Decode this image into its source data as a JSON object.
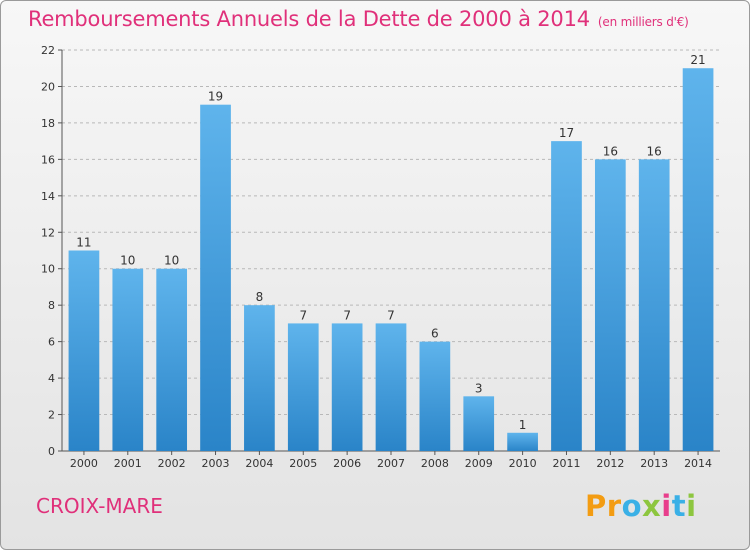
{
  "title": "Remboursements Annuels de la Dette de 2000 à 2014",
  "subtitle": "(en milliers d'€)",
  "commune": "CROIX-MARE",
  "logo": {
    "letters": [
      "P",
      "r",
      "o",
      "x",
      "i",
      "t",
      "i"
    ],
    "colors": [
      "#f39c12",
      "#f39c12",
      "#3ab0e6",
      "#8dc63f",
      "#e83e8c",
      "#3ab0e6",
      "#8dc63f"
    ]
  },
  "colors": {
    "title": "#e0307a",
    "bar_top": "#5fb4ec",
    "bar_bottom": "#2a84c8",
    "grid": "#b8b8b8"
  },
  "chart_data": {
    "type": "bar",
    "title": "Remboursements Annuels de la Dette de 2000 à 2014",
    "xlabel": "",
    "ylabel": "",
    "ylim": [
      0,
      22
    ],
    "yticks": [
      0,
      2,
      4,
      6,
      8,
      10,
      12,
      14,
      16,
      18,
      20,
      22
    ],
    "grid": true,
    "categories": [
      "2000",
      "2001",
      "2002",
      "2003",
      "2004",
      "2005",
      "2006",
      "2007",
      "2008",
      "2009",
      "2010",
      "2011",
      "2012",
      "2013",
      "2014"
    ],
    "values": [
      11,
      10,
      10,
      19,
      8,
      7,
      7,
      7,
      6,
      3,
      1,
      17,
      16,
      16,
      21
    ]
  }
}
